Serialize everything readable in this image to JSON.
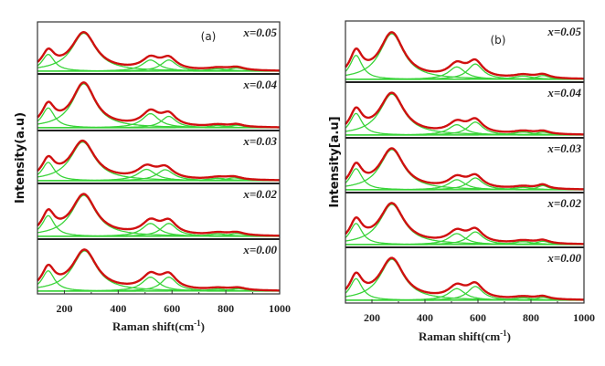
{
  "colors": {
    "fit_total": "#d01010",
    "components": "#3ad43a",
    "frame": "#333333"
  },
  "chart_data": [
    {
      "type": "line",
      "panel_label": "(a)",
      "xlabel": "Raman shift(cm",
      "xlabel_sup": "-1",
      "xlabel_close": ")",
      "ylabel": "Intensity(a.u)",
      "xlim": [
        100,
        1000
      ],
      "xticks": [
        200,
        400,
        600,
        800,
        1000
      ],
      "grid": false,
      "stacked": true,
      "series": [
        {
          "name": "x=0.05",
          "components": [
            [
              140,
              0.42,
              28
            ],
            [
              272,
              0.95,
              55
            ],
            [
              520,
              0.28,
              38
            ],
            [
              588,
              0.28,
              35
            ],
            [
              770,
              0.06,
              45
            ],
            [
              840,
              0.08,
              35
            ]
          ]
        },
        {
          "name": "x=0.04",
          "components": [
            [
              140,
              0.45,
              28
            ],
            [
              272,
              1.0,
              52
            ],
            [
              520,
              0.32,
              38
            ],
            [
              588,
              0.26,
              33
            ],
            [
              770,
              0.05,
              40
            ],
            [
              840,
              0.06,
              30
            ]
          ]
        },
        {
          "name": "x=0.03",
          "components": [
            [
              140,
              0.45,
              28
            ],
            [
              268,
              0.95,
              55
            ],
            [
              505,
              0.28,
              40
            ],
            [
              575,
              0.27,
              38
            ],
            [
              770,
              0.06,
              45
            ],
            [
              830,
              0.07,
              35
            ]
          ]
        },
        {
          "name": "x=0.02",
          "components": [
            [
              140,
              0.48,
              28
            ],
            [
              272,
              0.95,
              55
            ],
            [
              520,
              0.3,
              38
            ],
            [
              588,
              0.3,
              35
            ],
            [
              770,
              0.06,
              45
            ],
            [
              840,
              0.07,
              35
            ]
          ]
        },
        {
          "name": "x=0.00",
          "components": [
            [
              140,
              0.48,
              28
            ],
            [
              275,
              0.95,
              55
            ],
            [
              520,
              0.33,
              38
            ],
            [
              588,
              0.33,
              35
            ],
            [
              770,
              0.05,
              45
            ],
            [
              845,
              0.06,
              35
            ]
          ]
        }
      ]
    },
    {
      "type": "line",
      "panel_label": "(b)",
      "xlabel": "Raman shift(cm",
      "xlabel_sup": "-1",
      "xlabel_close": ")",
      "ylabel": "Intensity[a.u]",
      "xlim": [
        100,
        1000
      ],
      "xticks": [
        200,
        400,
        600,
        800,
        1000
      ],
      "grid": false,
      "stacked": true,
      "series": [
        {
          "name": "x=0.05",
          "components": [
            [
              140,
              0.5,
              28
            ],
            [
              275,
              0.95,
              55
            ],
            [
              520,
              0.26,
              38
            ],
            [
              590,
              0.32,
              35
            ],
            [
              770,
              0.07,
              45
            ],
            [
              845,
              0.08,
              30
            ]
          ]
        },
        {
          "name": "x=0.04",
          "components": [
            [
              140,
              0.5,
              28
            ],
            [
              275,
              0.95,
              55
            ],
            [
              520,
              0.24,
              38
            ],
            [
              590,
              0.3,
              35
            ],
            [
              770,
              0.07,
              45
            ],
            [
              845,
              0.07,
              30
            ]
          ]
        },
        {
          "name": "x=0.03",
          "components": [
            [
              140,
              0.5,
              28
            ],
            [
              275,
              0.95,
              55
            ],
            [
              520,
              0.24,
              38
            ],
            [
              590,
              0.28,
              35
            ],
            [
              770,
              0.06,
              45
            ],
            [
              845,
              0.1,
              25
            ]
          ]
        },
        {
          "name": "x=0.02",
          "components": [
            [
              140,
              0.5,
              28
            ],
            [
              275,
              0.95,
              55
            ],
            [
              520,
              0.26,
              38
            ],
            [
              590,
              0.3,
              35
            ],
            [
              770,
              0.07,
              45
            ],
            [
              845,
              0.08,
              30
            ]
          ]
        },
        {
          "name": "x=0.00",
          "components": [
            [
              140,
              0.5,
              28
            ],
            [
              275,
              0.95,
              55
            ],
            [
              520,
              0.27,
              38
            ],
            [
              590,
              0.32,
              35
            ],
            [
              770,
              0.06,
              45
            ],
            [
              845,
              0.07,
              30
            ]
          ]
        }
      ]
    }
  ]
}
